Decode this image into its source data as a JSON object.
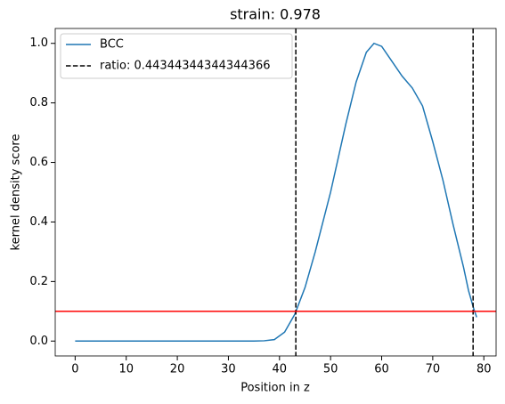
{
  "chart_data": {
    "type": "line",
    "title": "strain: 0.978",
    "x_label": "Position in z",
    "y_label": "kernel density score",
    "x": [
      0,
      10,
      20,
      30,
      35,
      37,
      39,
      41,
      43,
      45,
      47,
      50,
      53,
      55,
      57,
      58.5,
      60,
      62,
      64,
      66,
      68,
      70,
      72,
      74,
      76,
      77,
      78,
      78.6
    ],
    "series": [
      {
        "name": "BCC",
        "color": "#1f77b4",
        "values": [
          0,
          0,
          0,
          0,
          0,
          0.001,
          0.005,
          0.03,
          0.09,
          0.18,
          0.3,
          0.5,
          0.73,
          0.87,
          0.97,
          1.0,
          0.99,
          0.94,
          0.89,
          0.85,
          0.79,
          0.67,
          0.54,
          0.39,
          0.25,
          0.17,
          0.11,
          0.08
        ]
      }
    ],
    "vlines": {
      "name": "ratio: 0.44344344344344366",
      "color": "#000000",
      "values": [
        43.2,
        77.9
      ]
    },
    "hline": {
      "value": 0.1,
      "color": "#ff0000"
    },
    "xlim": [
      -3.9,
      82.4
    ],
    "ylim": [
      -0.05,
      1.05
    ],
    "xticks": [
      0,
      10,
      20,
      30,
      40,
      50,
      60,
      70,
      80
    ],
    "yticks": [
      {
        "value": 0,
        "label": "0.0"
      },
      0.2,
      0.4,
      0.6,
      0.8,
      {
        "value": 1,
        "label": "1.0"
      }
    ],
    "legend": "upper left"
  }
}
